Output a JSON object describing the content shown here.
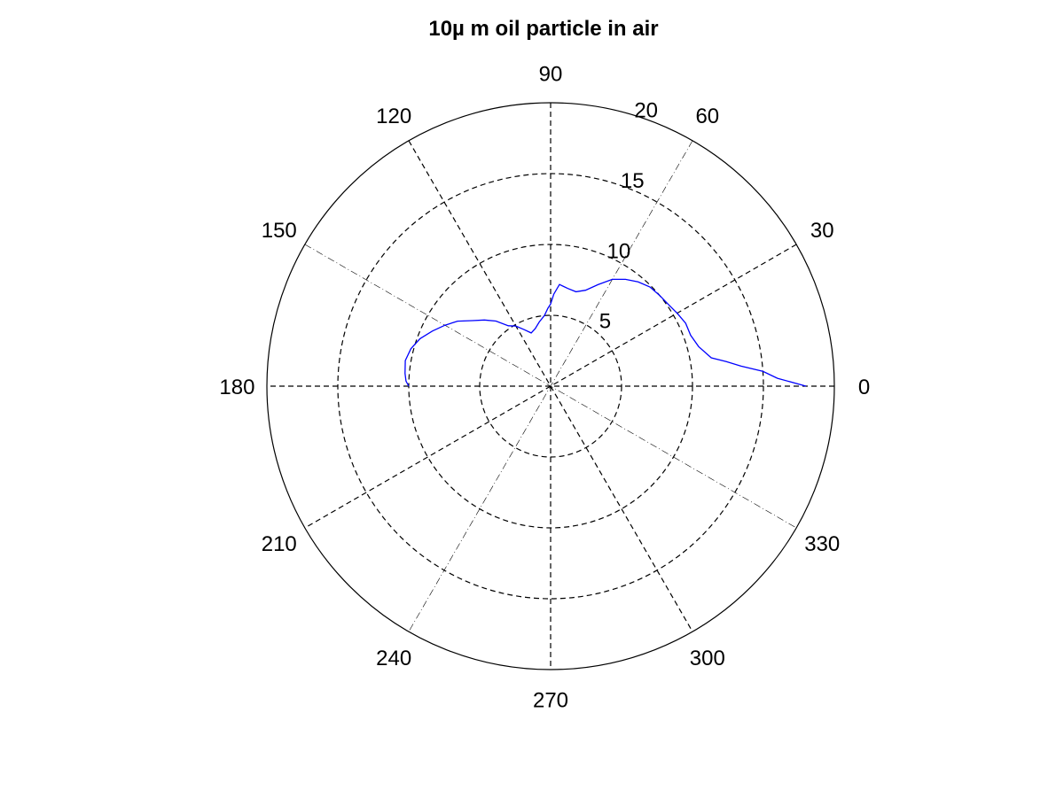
{
  "chart_data": {
    "type": "line",
    "subtype": "polar",
    "title": "10µ  m oil particle in air",
    "theta_unit": "degrees",
    "r_lim": [
      0,
      20
    ],
    "r_ticks": [
      5,
      10,
      15,
      20
    ],
    "r_tick_labels": [
      "5",
      "10",
      "15",
      "20"
    ],
    "angle_ticks": [
      0,
      30,
      60,
      90,
      120,
      150,
      180,
      210,
      240,
      270,
      300,
      330
    ],
    "angle_tick_labels": [
      "0",
      "30",
      "60",
      "90",
      "120",
      "150",
      "180",
      "210",
      "240",
      "270",
      "300",
      "330"
    ],
    "grid": true,
    "series": [
      {
        "color": "#0000ff",
        "theta": [
          0,
          2,
          4,
          6,
          8,
          10,
          15,
          20,
          25,
          30,
          35,
          40,
          45,
          50,
          55,
          60,
          65,
          70,
          75,
          80,
          85,
          88,
          90,
          92,
          95,
          100,
          105,
          110,
          115,
          120,
          125,
          130,
          135,
          140,
          145,
          150,
          155,
          160,
          165,
          170,
          175,
          178,
          180
        ],
        "r": [
          18.0,
          16.0,
          15.0,
          13.5,
          12.5,
          11.5,
          10.8,
          10.5,
          10.5,
          10.3,
          10.1,
          10.0,
          9.9,
          9.6,
          9.2,
          8.7,
          7.9,
          7.2,
          6.9,
          7.0,
          7.2,
          6.5,
          5.8,
          5.5,
          5.0,
          4.6,
          4.2,
          4.0,
          4.4,
          4.9,
          5.2,
          6.0,
          6.6,
          7.2,
          8.0,
          8.6,
          9.2,
          9.8,
          10.2,
          10.4,
          10.3,
          10.2,
          10.0
        ]
      }
    ]
  }
}
